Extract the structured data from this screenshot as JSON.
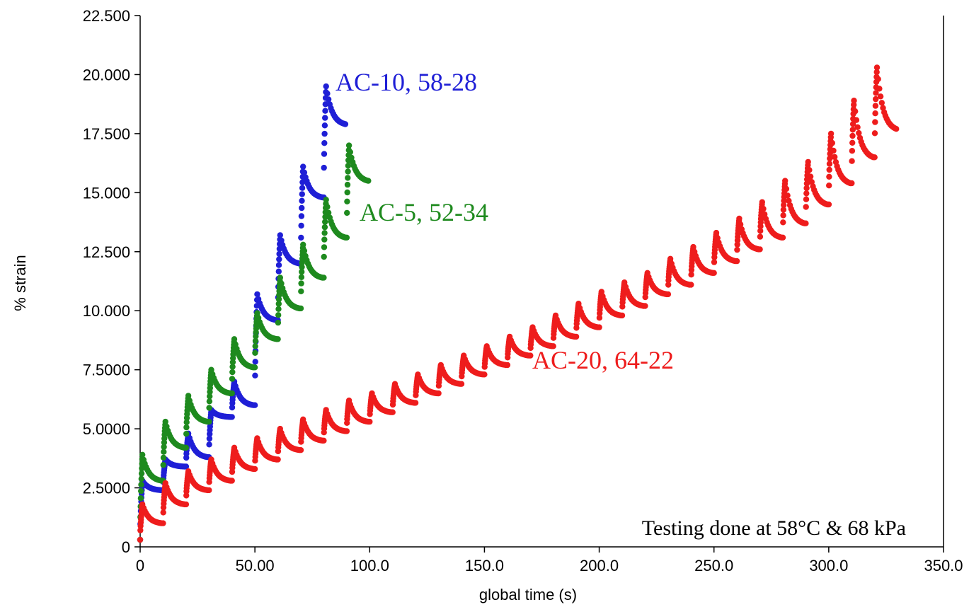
{
  "chart_data": {
    "type": "scatter",
    "xlabel": "global time (s)",
    "ylabel": "% strain",
    "xlim": [
      0,
      350
    ],
    "ylim": [
      0,
      22.5
    ],
    "x_ticks": [
      0,
      50,
      100,
      150,
      200,
      250,
      300,
      350
    ],
    "x_tick_labels": [
      "0",
      "50.00",
      "100.0",
      "150.0",
      "200.0",
      "250.0",
      "300.0",
      "350.0"
    ],
    "y_ticks": [
      0,
      2.5,
      5,
      7.5,
      10,
      12.5,
      15,
      17.5,
      20,
      22.5
    ],
    "y_tick_labels": [
      "0",
      "2.5000",
      "5.0000",
      "7.5000",
      "10.000",
      "12.500",
      "15.000",
      "17.500",
      "20.000",
      "22.500"
    ],
    "grid": false,
    "annotation": "Testing done at 58°C & 68 kPa",
    "cycle_period_s": 10,
    "series": [
      {
        "name": "AC-10, 58-28",
        "color": "#1f1fd6",
        "load_start_times": [
          0,
          10,
          20,
          30,
          40,
          50,
          60,
          70,
          80
        ],
        "peak_strain": [
          2.8,
          3.7,
          4.8,
          5.8,
          7.0,
          10.7,
          13.2,
          16.1,
          19.5
        ],
        "end_strain": [
          2.4,
          3.4,
          3.8,
          5.5,
          6.0,
          9.6,
          12.0,
          14.8,
          17.9
        ]
      },
      {
        "name": "AC-5, 52-34",
        "color": "#1e8a1e",
        "load_start_times": [
          0,
          10,
          20,
          30,
          40,
          50,
          60,
          70,
          80,
          90
        ],
        "peak_strain": [
          3.9,
          5.3,
          6.4,
          7.5,
          8.8,
          9.9,
          11.4,
          12.8,
          14.7,
          17.0
        ],
        "end_strain": [
          2.8,
          4.2,
          5.3,
          6.5,
          7.6,
          8.8,
          10.1,
          11.4,
          13.1,
          15.5
        ]
      },
      {
        "name": "AC-20, 64-22",
        "color": "#ee1c1c",
        "load_start_times": [
          0,
          10,
          20,
          30,
          40,
          50,
          60,
          70,
          80,
          90,
          100,
          110,
          120,
          130,
          140,
          150,
          160,
          170,
          180,
          190,
          200,
          210,
          220,
          230,
          240,
          250,
          260,
          270,
          280,
          290,
          300,
          310,
          320
        ],
        "peak_strain": [
          1.8,
          2.7,
          3.2,
          3.7,
          4.2,
          4.6,
          5.0,
          5.4,
          5.8,
          6.2,
          6.5,
          6.9,
          7.3,
          7.7,
          8.1,
          8.5,
          8.9,
          9.3,
          9.8,
          10.3,
          10.8,
          11.2,
          11.6,
          12.2,
          12.7,
          13.3,
          13.9,
          14.6,
          15.5,
          16.3,
          17.5,
          18.9,
          20.3
        ],
        "end_strain": [
          1.0,
          1.8,
          2.4,
          2.8,
          3.3,
          3.7,
          4.1,
          4.5,
          4.9,
          5.3,
          5.7,
          6.1,
          6.5,
          6.9,
          7.3,
          7.7,
          8.1,
          8.5,
          8.9,
          9.3,
          9.8,
          10.2,
          10.7,
          11.1,
          11.6,
          12.1,
          12.6,
          13.1,
          13.7,
          14.5,
          15.4,
          16.5,
          17.7
        ]
      }
    ]
  }
}
